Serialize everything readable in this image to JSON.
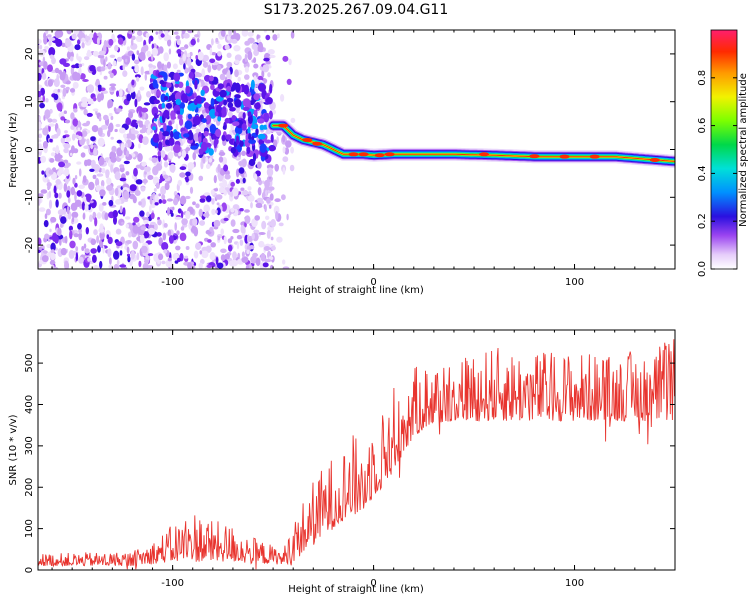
{
  "title": "S173.2025.267.09.04.G11",
  "chart_data": [
    {
      "type": "heatmap",
      "xlabel": "Height of straight line (km)",
      "ylabel": "Frequency (Hz)",
      "xlim": [
        -167,
        150
      ],
      "ylim": [
        -25,
        25
      ],
      "x_ticks": [
        -100,
        0,
        100
      ],
      "y_ticks": [
        -20,
        -10,
        0,
        10,
        20
      ],
      "colorbar": {
        "label": "Normalized spectral amplitude",
        "range": [
          0,
          1
        ],
        "ticks": [
          "0.0",
          "0.2",
          "0.4",
          "0.6",
          "0.8"
        ]
      },
      "ridge": {
        "x": [
          -60,
          -50,
          -45,
          -40,
          -35,
          -30,
          -25,
          -20,
          -15,
          -10,
          -5,
          0,
          10,
          20,
          40,
          60,
          80,
          100,
          120,
          135,
          150
        ],
        "freq": [
          6,
          5,
          5,
          3,
          2,
          1.5,
          1,
          0,
          -1,
          -1,
          -1,
          -1.2,
          -1,
          -1,
          -1,
          -1.2,
          -1.5,
          -1.5,
          -1.5,
          -2,
          -2.5
        ]
      }
    },
    {
      "type": "line",
      "xlabel": "Height of straight line (km)",
      "ylabel": "SNR (10 * v/v)",
      "xlim": [
        -167,
        150
      ],
      "ylim": [
        0,
        580
      ],
      "x_ticks": [
        -100,
        0,
        100
      ],
      "y_ticks": [
        0,
        100,
        200,
        300,
        400,
        500
      ],
      "color": "#e8342e",
      "envelope": {
        "x": [
          -167,
          -120,
          -110,
          -100,
          -90,
          -80,
          -70,
          -60,
          -50,
          -45,
          -40,
          -35,
          -30,
          -25,
          -20,
          -15,
          -10,
          -5,
          0,
          5,
          10,
          15,
          20,
          25,
          30,
          40,
          60,
          80,
          100,
          120,
          150
        ],
        "low": [
          10,
          10,
          15,
          20,
          20,
          20,
          20,
          15,
          15,
          12,
          20,
          40,
          60,
          80,
          100,
          120,
          130,
          140,
          180,
          200,
          240,
          280,
          320,
          340,
          350,
          360,
          360,
          360,
          360,
          360,
          360
        ],
        "high": [
          40,
          45,
          70,
          110,
          150,
          120,
          110,
          80,
          60,
          50,
          120,
          170,
          220,
          250,
          280,
          300,
          330,
          300,
          380,
          390,
          450,
          470,
          490,
          500,
          510,
          520,
          540,
          530,
          530,
          520,
          560
        ]
      }
    }
  ]
}
